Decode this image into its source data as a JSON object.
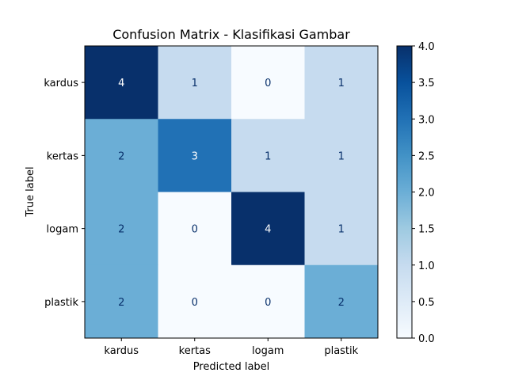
{
  "chart_data": {
    "type": "heatmap",
    "title": "Confusion Matrix - Klasifikasi Gambar",
    "xlabel": "Predicted label",
    "ylabel": "True label",
    "x_categories": [
      "kardus",
      "kertas",
      "logam",
      "plastik"
    ],
    "y_categories": [
      "kardus",
      "kertas",
      "logam",
      "plastik"
    ],
    "values": [
      [
        4,
        1,
        0,
        1
      ],
      [
        2,
        3,
        1,
        1
      ],
      [
        2,
        0,
        4,
        1
      ],
      [
        2,
        0,
        0,
        2
      ]
    ],
    "colorbar": {
      "min": 0,
      "max": 4,
      "ticks": [
        "0.0",
        "0.5",
        "1.0",
        "1.5",
        "2.0",
        "2.5",
        "3.0",
        "3.5",
        "4.0"
      ],
      "colormap": "Blues"
    },
    "colors": {
      "low": "#f7fbff",
      "high": "#08306b",
      "text_light": "#ffffff",
      "text_dark": "#08306b"
    }
  }
}
